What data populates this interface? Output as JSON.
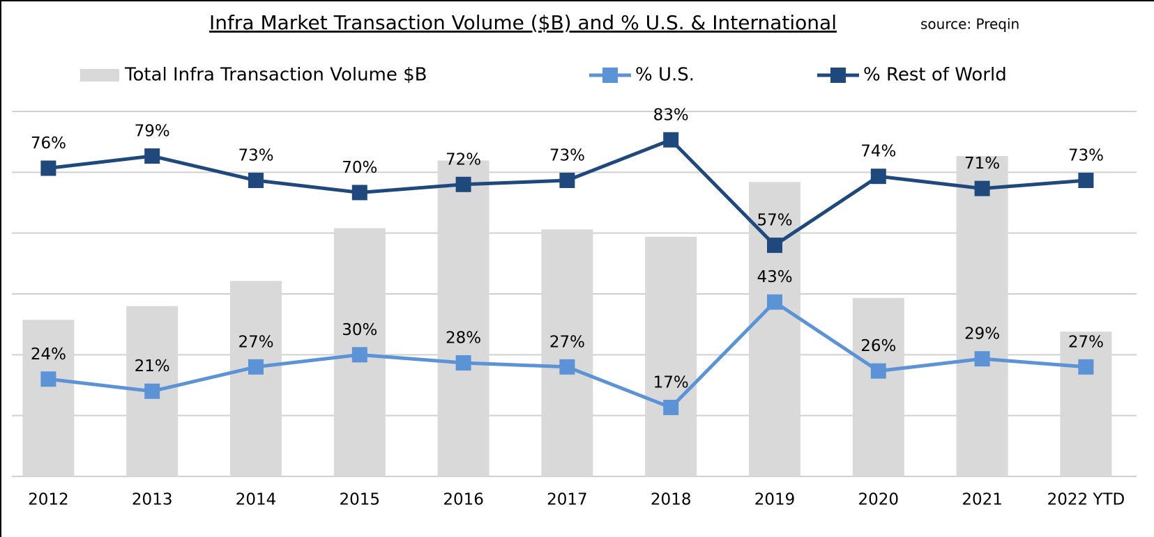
{
  "chart_data": {
    "type": "bar-line",
    "title": "Infra Market Transaction Volume ($B) and % U.S. & International",
    "subtitle": "source: Preqin",
    "categories": [
      "2012",
      "2013",
      "2014",
      "2015",
      "2016",
      "2017",
      "2018",
      "2019",
      "2020",
      "2021",
      "2022 YTD"
    ],
    "ylim": [
      0,
      90
    ],
    "yticks": [
      0,
      15,
      30,
      45,
      60,
      75,
      90
    ],
    "grid": true,
    "legend": "top",
    "series": [
      {
        "name": "Total Infra Transaction Volume $B",
        "type": "bar",
        "color": "#d9d9d9",
        "values": [
          38.6,
          42,
          48.2,
          61.2,
          77.9,
          60.9,
          59.1,
          72.6,
          44,
          79,
          35.7
        ]
      },
      {
        "name": "% U.S.",
        "type": "line",
        "color": "#5b93d6",
        "values": [
          24,
          21,
          27,
          30,
          28,
          27,
          17,
          43,
          26,
          29,
          27
        ],
        "value_labels": [
          "24%",
          "21%",
          "27%",
          "30%",
          "28%",
          "27%",
          "17%",
          "43%",
          "26%",
          "29%",
          "27%"
        ]
      },
      {
        "name": "% Rest of World",
        "type": "line",
        "color": "#1f497d",
        "values": [
          76,
          79,
          73,
          70,
          72,
          73,
          83,
          57,
          74,
          71,
          73
        ],
        "value_labels": [
          "76%",
          "79%",
          "73%",
          "70%",
          "72%",
          "73%",
          "83%",
          "57%",
          "74%",
          "71%",
          "73%"
        ]
      }
    ]
  }
}
